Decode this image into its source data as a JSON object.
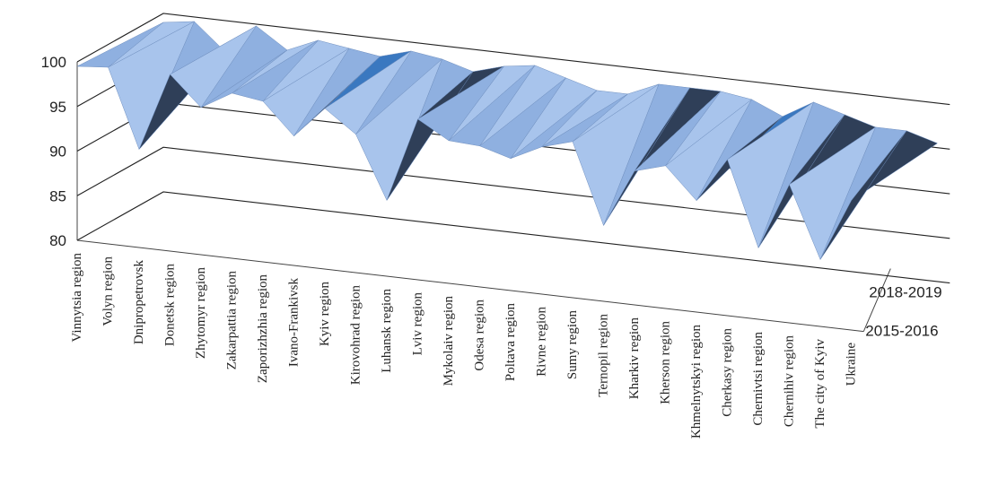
{
  "chart_data": {
    "type": "area",
    "subtype": "3d-surface",
    "title": "",
    "xlabel": "",
    "ylabel": "",
    "ylim": [
      80,
      100
    ],
    "yticks": [
      80,
      85,
      90,
      95,
      100
    ],
    "grid": true,
    "legend": "none",
    "categories": [
      "Vinnytsia region",
      "Volyn region",
      "Dnipropetrovsk",
      "Donetsk region",
      "Zhytomyr region",
      "Zakarpattia region",
      "Zaporizhzhia region",
      "Ivano-Frankivsk",
      "Kyiv region",
      "Kirovohrad region",
      "Luhansk region",
      "Lviv region",
      "Mykolaiv region",
      "Odesa region",
      "Poltava region",
      "Rivne region",
      "Sumy region",
      "Ternopil region",
      "Kharkiv region",
      "Kherson region",
      "Khmelnytskyi region",
      "Cherkasy region",
      "Chernivtsi region",
      "Chernihiv region",
      "The city of Kyiv",
      "Ukraine"
    ],
    "depth_labels": [
      "2015-2016",
      "2018-2019"
    ],
    "series": [
      {
        "name": "2015-2016",
        "values": [
          99.5,
          99.8,
          91.0,
          99.8,
          96.5,
          98.5,
          98.0,
          94.5,
          98.0,
          95.5,
          88.5,
          98.0,
          96.0,
          95.8,
          94.8,
          96.5,
          97.5,
          88.5,
          95.0,
          96.0,
          92.5,
          97.5,
          88.0,
          95.5,
          87.5,
          94.5
        ]
      },
      {
        "name": "2018-2019",
        "values": [
          99.0,
          99.5,
          96.5,
          99.8,
          97.5,
          99.0,
          98.5,
          98.0,
          99.0,
          98.5,
          97.5,
          98.5,
          99.0,
          98.0,
          97.0,
          97.0,
          98.5,
          98.5,
          98.5,
          98.0,
          96.5,
          98.5,
          97.5,
          96.5,
          96.5,
          95.5
        ]
      }
    ],
    "colors": {
      "light_face": "#a8c4ec",
      "mid_face": "#8fb0e0",
      "dark_face": "#2f3f58",
      "blue_face": "#3a78c0",
      "edge": "#6f8fbf"
    }
  }
}
